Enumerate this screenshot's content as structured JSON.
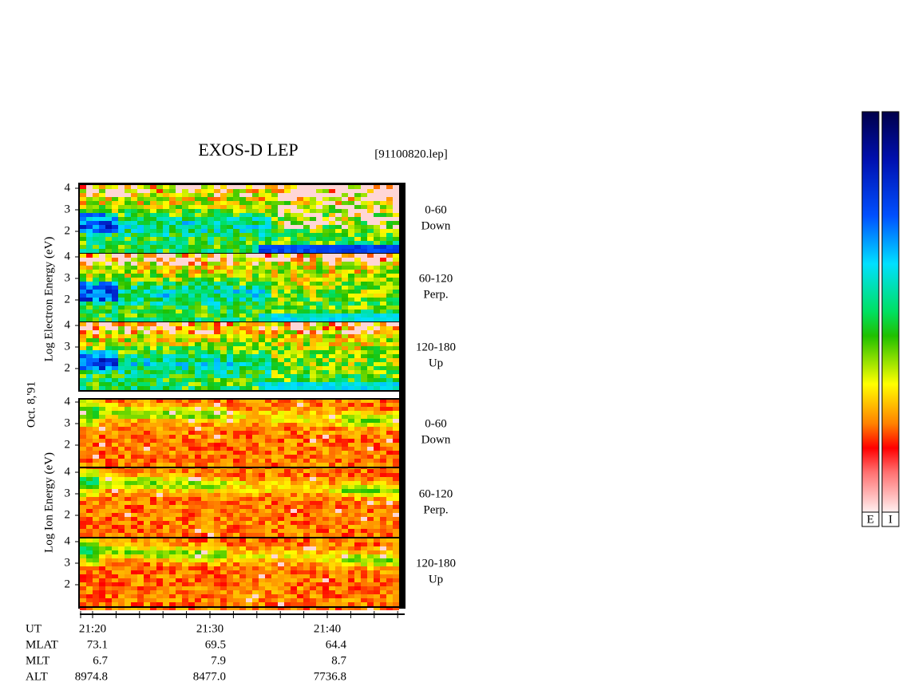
{
  "header": {
    "title": "EXOS-D LEP",
    "file": "[91100820.lep]"
  },
  "left_labels": {
    "electron": "Log Electron Energy (eV)",
    "date": "Oct. 8,'91",
    "ion": "Log Ion Energy (eV)"
  },
  "panels": [
    {
      "species": "electron",
      "y_ticks": [
        "4",
        "3",
        "2"
      ],
      "angle": "0-60",
      "direction": "Down"
    },
    {
      "species": "electron",
      "y_ticks": [
        "4",
        "3",
        "2"
      ],
      "angle": "60-120",
      "direction": "Perp."
    },
    {
      "species": "electron",
      "y_ticks": [
        "4",
        "3",
        "2"
      ],
      "angle": "120-180",
      "direction": "Up"
    },
    {
      "species": "ion",
      "y_ticks": [
        "4",
        "3",
        "2"
      ],
      "angle": "0-60",
      "direction": "Down"
    },
    {
      "species": "ion",
      "y_ticks": [
        "4",
        "3",
        "2"
      ],
      "angle": "60-120",
      "direction": "Perp."
    },
    {
      "species": "ion",
      "y_ticks": [
        "4",
        "3",
        "2"
      ],
      "angle": "120-180",
      "direction": "Up"
    }
  ],
  "table": {
    "rows": [
      [
        "UT",
        "21:20",
        "21:30",
        "21:40"
      ],
      [
        "MLAT",
        "73.1",
        "69.5",
        "64.4"
      ],
      [
        "MLT",
        "6.7",
        "7.9",
        "8.7"
      ],
      [
        "ALT",
        "8974.8",
        "8477.0",
        "7736.8"
      ]
    ]
  },
  "colorbars": {
    "labels": [
      "E",
      "I"
    ]
  }
}
